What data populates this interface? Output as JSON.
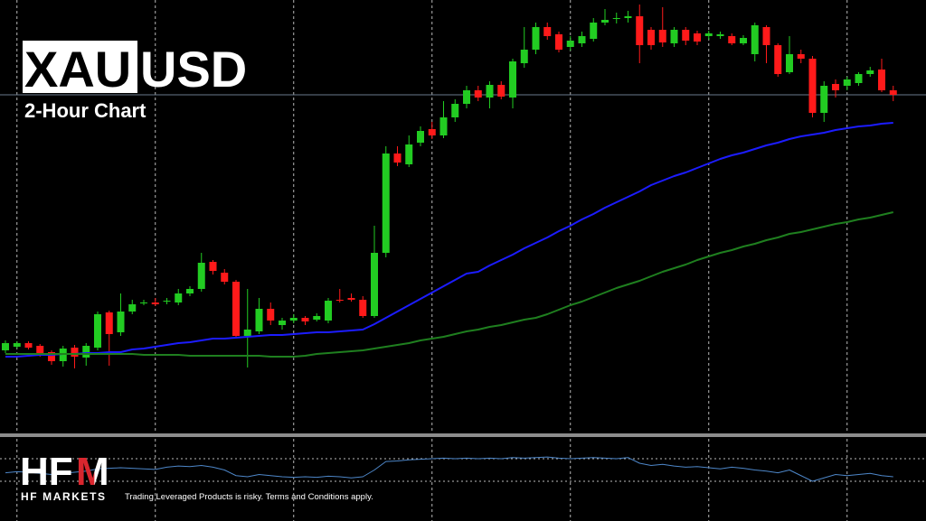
{
  "chart_data": {
    "type": "candlestick",
    "title": {
      "base": "XAU",
      "quote": "USD"
    },
    "subtitle": "2-Hour Chart",
    "ylim": [
      0,
      480
    ],
    "grid": true,
    "up_color": "#22cc22",
    "down_color": "#ff1a1a",
    "open": [
      92,
      96,
      100,
      97,
      90,
      80,
      95,
      84,
      95,
      134,
      112,
      135,
      144,
      145,
      146,
      145,
      155,
      160,
      190,
      178,
      168,
      108,
      113,
      138,
      120,
      125,
      128,
      126,
      125,
      148,
      150,
      148,
      130,
      200,
      310,
      298,
      322,
      337,
      330,
      350,
      365,
      380,
      372,
      386,
      372,
      410,
      425,
      450,
      442,
      428,
      432,
      437,
      455,
      459,
      460,
      462,
      447,
      447,
      432,
      447,
      443,
      440,
      440,
      440,
      432,
      420,
      450,
      430,
      400,
      420,
      415,
      355,
      387,
      385,
      388,
      398,
      403,
      380
    ],
    "high": [
      103,
      102,
      102,
      99,
      92,
      97,
      98,
      100,
      135,
      136,
      155,
      148,
      148,
      150,
      150,
      160,
      163,
      200,
      192,
      182,
      170,
      160,
      150,
      145,
      128,
      132,
      130,
      133,
      150,
      160,
      155,
      152,
      230,
      318,
      318,
      330,
      340,
      345,
      368,
      370,
      385,
      385,
      390,
      390,
      415,
      450,
      455,
      455,
      445,
      440,
      445,
      460,
      470,
      466,
      468,
      475,
      450,
      472,
      450,
      450,
      446,
      446,
      445,
      443,
      441,
      455,
      452,
      432,
      440,
      425,
      418,
      390,
      392,
      395,
      400,
      406,
      415,
      385
    ],
    "low": [
      89,
      94,
      93,
      85,
      76,
      74,
      72,
      75,
      92,
      75,
      108,
      132,
      142,
      141,
      143,
      142,
      152,
      157,
      176,
      165,
      105,
      73,
      110,
      120,
      115,
      122,
      120,
      124,
      122,
      145,
      146,
      128,
      128,
      195,
      296,
      295,
      318,
      326,
      327,
      345,
      360,
      368,
      360,
      370,
      360,
      405,
      420,
      436,
      422,
      424,
      428,
      434,
      452,
      454,
      455,
      410,
      425,
      428,
      428,
      430,
      430,
      436,
      437,
      430,
      430,
      412,
      410,
      395,
      398,
      410,
      350,
      345,
      372,
      380,
      385,
      395,
      378,
      368
    ],
    "close": [
      100,
      100,
      95,
      88,
      80,
      94,
      85,
      97,
      132,
      110,
      135,
      143,
      145,
      143,
      147,
      155,
      160,
      189,
      180,
      168,
      108,
      115,
      138,
      125,
      125,
      128,
      124,
      130,
      147,
      147,
      148,
      130,
      200,
      310,
      300,
      320,
      335,
      330,
      350,
      365,
      380,
      372,
      386,
      373,
      412,
      425,
      450,
      440,
      425,
      435,
      440,
      455,
      458,
      460,
      462,
      430,
      430,
      433,
      447,
      435,
      434,
      443,
      442,
      432,
      438,
      452,
      430,
      398,
      420,
      415,
      355,
      385,
      380,
      392,
      398,
      402,
      380,
      375
    ],
    "overlays": [
      {
        "color": "#1c1cff",
        "values": [
          85,
          85,
          86,
          87,
          87,
          88,
          88,
          89,
          89,
          90,
          90,
          93,
          94,
          96,
          98,
          100,
          101,
          103,
          105,
          105,
          106,
          107,
          108,
          109,
          109,
          110,
          111,
          112,
          112,
          113,
          114,
          115,
          121,
          128,
          135,
          142,
          149,
          156,
          163,
          170,
          177,
          179,
          186,
          192,
          198,
          205,
          211,
          217,
          224,
          230,
          237,
          243,
          250,
          256,
          262,
          268,
          275,
          280,
          285,
          289,
          294,
          299,
          304,
          308,
          311,
          315,
          319,
          322,
          326,
          329,
          331,
          333,
          336,
          338,
          340,
          341,
          343,
          344
        ]
      },
      {
        "color": "#1f7f1f",
        "values": [
          88,
          88,
          88,
          88,
          88,
          88,
          88,
          88,
          88,
          88,
          88,
          88,
          87,
          87,
          87,
          87,
          86,
          86,
          86,
          86,
          86,
          86,
          86,
          85,
          85,
          85,
          86,
          88,
          89,
          90,
          91,
          92,
          94,
          96,
          98,
          100,
          103,
          105,
          107,
          110,
          113,
          115,
          118,
          120,
          123,
          126,
          128,
          132,
          137,
          142,
          146,
          151,
          156,
          161,
          165,
          169,
          174,
          179,
          183,
          187,
          192,
          196,
          200,
          203,
          207,
          210,
          214,
          217,
          221,
          223,
          226,
          229,
          232,
          234,
          237,
          239,
          242,
          245
        ]
      }
    ],
    "indicator": {
      "color": "#4d86c8",
      "ylim": [
        0,
        100
      ],
      "levels": [
        70,
        30
      ],
      "values": [
        45,
        47,
        46,
        44,
        42,
        44,
        46,
        48,
        52,
        53,
        54,
        53,
        52,
        51,
        55,
        57,
        56,
        58,
        55,
        50,
        40,
        38,
        42,
        40,
        38,
        37,
        38,
        37,
        39,
        38,
        36,
        38,
        50,
        65,
        66,
        68,
        69,
        70,
        71,
        70,
        71,
        70,
        71,
        70,
        72,
        71,
        72,
        73,
        71,
        70,
        71,
        72,
        71,
        70,
        72,
        62,
        58,
        60,
        57,
        55,
        56,
        54,
        52,
        55,
        53,
        50,
        48,
        45,
        50,
        40,
        30,
        36,
        42,
        40,
        42,
        44,
        40,
        38
      ]
    }
  },
  "brand": {
    "logo_left": "HF",
    "logo_right": "M",
    "name": "HF MARKETS",
    "disclaimer": "Trading Leveraged Products is risky. Terms and Conditions apply."
  }
}
